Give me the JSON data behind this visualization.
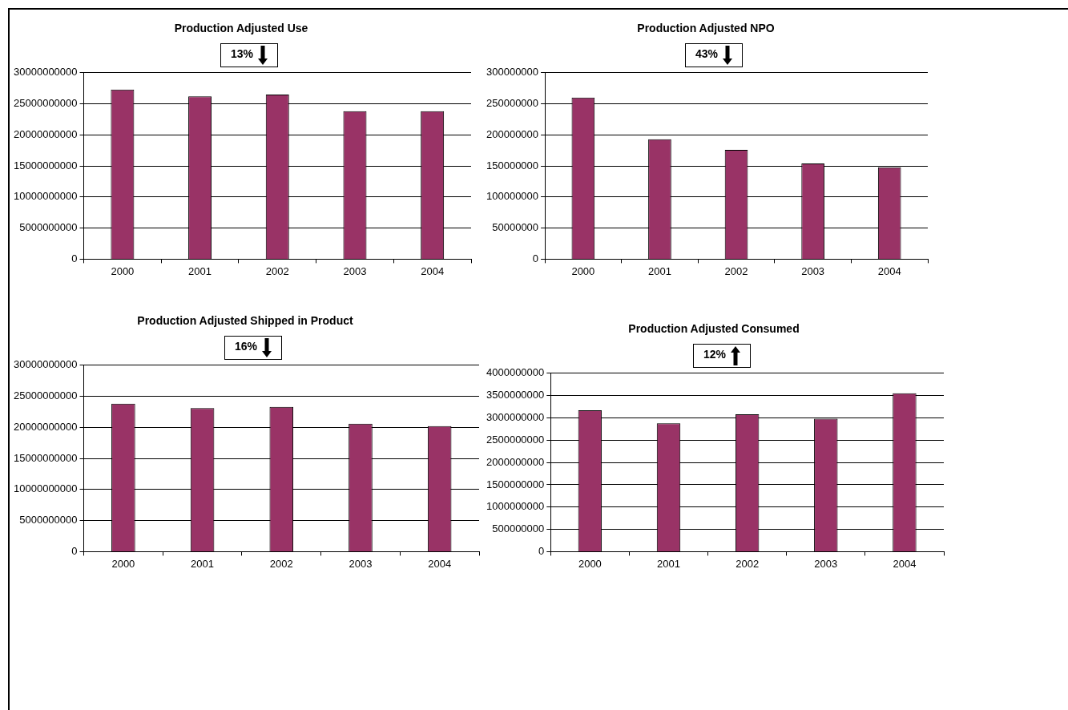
{
  "chart_data": [
    {
      "type": "bar",
      "title": "Production Adjusted Use",
      "categories": [
        "2000",
        "2001",
        "2002",
        "2003",
        "2004"
      ],
      "values": [
        27300000000,
        26200000000,
        26500000000,
        23800000000,
        23800000000
      ],
      "color": "#993366",
      "ylim": [
        0,
        30000000000
      ],
      "yticks": [
        0,
        5000000000,
        10000000000,
        15000000000,
        20000000000,
        25000000000,
        30000000000
      ],
      "grid": "y",
      "annotations": [
        "13%"
      ]
    },
    {
      "type": "bar",
      "title": "Production Adjusted NPO",
      "categories": [
        "2000",
        "2001",
        "2002",
        "2003",
        "2004"
      ],
      "values": [
        260000000,
        193000000,
        176000000,
        154000000,
        148000000
      ],
      "color": "#993366",
      "ylim": [
        0,
        300000000
      ],
      "yticks": [
        0,
        50000000,
        100000000,
        150000000,
        200000000,
        250000000,
        300000000
      ],
      "grid": "y",
      "annotations": [
        "43%"
      ]
    },
    {
      "type": "bar",
      "title": "Production Adjusted Shipped in Product",
      "categories": [
        "2000",
        "2001",
        "2002",
        "2003",
        "2004"
      ],
      "values": [
        23800000000,
        23100000000,
        23300000000,
        20600000000,
        20200000000
      ],
      "color": "#993366",
      "ylim": [
        0,
        30000000000
      ],
      "yticks": [
        0,
        5000000000,
        10000000000,
        15000000000,
        20000000000,
        25000000000,
        30000000000
      ],
      "grid": "y",
      "annotations": [
        "16%"
      ]
    },
    {
      "type": "bar",
      "title": "Production Adjusted Consumed",
      "categories": [
        "2000",
        "2001",
        "2002",
        "2003",
        "2004"
      ],
      "values": [
        3170000000,
        2880000000,
        3080000000,
        2980000000,
        3550000000
      ],
      "color": "#993366",
      "ylim": [
        0,
        4000000000
      ],
      "yticks": [
        0,
        500000000,
        1000000000,
        1500000000,
        2000000000,
        2500000000,
        3000000000,
        3500000000,
        4000000000
      ],
      "grid": "y",
      "annotations": [
        "12%"
      ]
    }
  ]
}
